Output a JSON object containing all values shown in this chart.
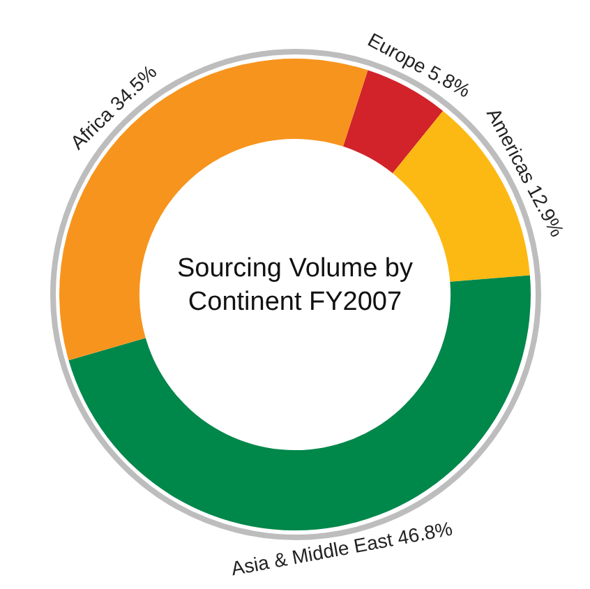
{
  "chart_data": {
    "type": "donut",
    "title": "Sourcing Volume by Continent FY2007",
    "categories": [
      "Europe",
      "Americas",
      "Asia & Middle East",
      "Africa"
    ],
    "values": [
      5.8,
      12.9,
      46.8,
      34.5
    ],
    "colors": [
      "#d2232a",
      "#fdb913",
      "#00874a",
      "#f7941d"
    ],
    "value_labels": [
      "5.8%",
      "12.9%",
      "46.8%",
      "34.5%"
    ],
    "legend": false
  }
}
